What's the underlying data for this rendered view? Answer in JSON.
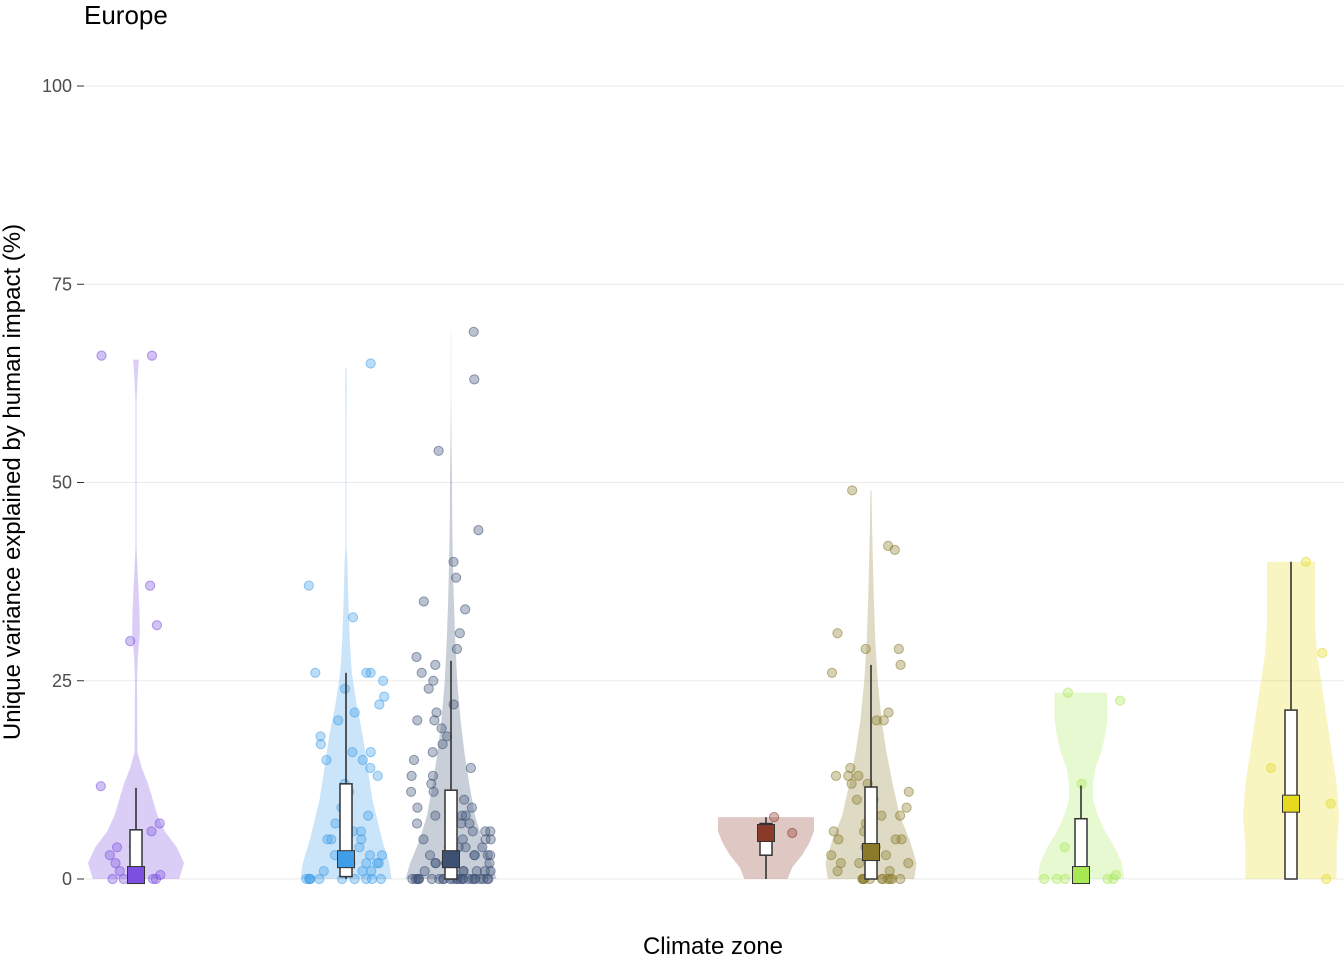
{
  "chart_data": {
    "type": "violin-box-jitter",
    "title": "Europe",
    "xlabel": "Climate zone",
    "ylabel": "Unique variance explained by human impact (%)",
    "ylim": [
      0,
      100
    ],
    "yticks": [
      0,
      25,
      50,
      75,
      100
    ],
    "grid": "horizontal major gridlines",
    "legend": "none",
    "groups": [
      {
        "color": "#7b4fe0",
        "box": {
          "lower": 0,
          "q1": 0,
          "median": 0.5,
          "q3": 6.2,
          "upper": 11.5
        },
        "violin": [
          [
            0,
            0.9
          ],
          [
            2,
            1.0
          ],
          [
            4,
            0.85
          ],
          [
            6,
            0.6
          ],
          [
            8,
            0.45
          ],
          [
            10,
            0.35
          ],
          [
            12,
            0.25
          ],
          [
            14,
            0.12
          ],
          [
            16,
            0.03
          ],
          [
            25,
            0.02
          ],
          [
            28,
            0.04
          ],
          [
            31,
            0.08
          ],
          [
            34,
            0.07
          ],
          [
            38,
            0.04
          ],
          [
            42,
            0.01
          ],
          [
            60,
            0.01
          ],
          [
            63,
            0.03
          ],
          [
            65.5,
            0.06
          ]
        ],
        "points": [
          0,
          0,
          0,
          0,
          0.5,
          1,
          2,
          3,
          4,
          4,
          6,
          7,
          11.7,
          30,
          32,
          37,
          66,
          66
        ]
      },
      {
        "color": "#3f9ee8",
        "box": {
          "lower": 0,
          "q1": 0.3,
          "median": 2.5,
          "q3": 12,
          "upper": 26
        },
        "violin": [
          [
            0,
            0.95
          ],
          [
            2,
            0.9
          ],
          [
            5,
            0.75
          ],
          [
            10,
            0.55
          ],
          [
            14,
            0.45
          ],
          [
            18,
            0.35
          ],
          [
            22,
            0.22
          ],
          [
            26,
            0.12
          ],
          [
            30,
            0.08
          ],
          [
            35,
            0.05
          ],
          [
            40,
            0.03
          ],
          [
            42,
            0.01
          ],
          [
            58,
            0.01
          ],
          [
            62,
            0.015
          ],
          [
            64.5,
            0.01
          ]
        ],
        "points": [
          0,
          0,
          0,
          0,
          0,
          0,
          0,
          0,
          0,
          0,
          1,
          1,
          1,
          2,
          2,
          2,
          2,
          2,
          3,
          3,
          3,
          4,
          4,
          5,
          5,
          5,
          6,
          6,
          7,
          8,
          9,
          10,
          11,
          12,
          13,
          14,
          15,
          15,
          16,
          16,
          17,
          18,
          20,
          21,
          22,
          23,
          24,
          25,
          26,
          26,
          26,
          33,
          37,
          65
        ]
      },
      {
        "color": "#3d5175",
        "box": {
          "lower": 0,
          "q1": 0,
          "median": 2.5,
          "q3": 11.2,
          "upper": 27.5
        },
        "violin": [
          [
            0,
            0.95
          ],
          [
            2,
            0.85
          ],
          [
            5,
            0.65
          ],
          [
            8,
            0.5
          ],
          [
            12,
            0.38
          ],
          [
            16,
            0.28
          ],
          [
            20,
            0.2
          ],
          [
            25,
            0.13
          ],
          [
            30,
            0.09
          ],
          [
            35,
            0.06
          ],
          [
            40,
            0.04
          ],
          [
            45,
            0.025
          ],
          [
            50,
            0.02
          ],
          [
            55,
            0.01
          ],
          [
            60,
            0.005
          ],
          [
            64,
            0.004
          ],
          [
            69,
            0.002
          ]
        ],
        "points": [
          0,
          0,
          0,
          0,
          0,
          0,
          0,
          0,
          0,
          0,
          0,
          0,
          0,
          0,
          0,
          0,
          0,
          0,
          0,
          0,
          0,
          0,
          0,
          0,
          1,
          1,
          1,
          1,
          1,
          1,
          2,
          2,
          2,
          2,
          2,
          2,
          3,
          3,
          3,
          3,
          3,
          4,
          4,
          4,
          4,
          4,
          5,
          5,
          5,
          5,
          6,
          6,
          6,
          7,
          7,
          7,
          8,
          8,
          8,
          9,
          9,
          10,
          10,
          11,
          11,
          12,
          13,
          13,
          14,
          15,
          16,
          17,
          18,
          19,
          20,
          20,
          21,
          22,
          24,
          25,
          26,
          27,
          28,
          29,
          31,
          34,
          35,
          38,
          40,
          44,
          54,
          63,
          69
        ]
      },
      {
        "color": "#8b3a2a",
        "box": {
          "lower": 0,
          "q1": 3,
          "median": 5.8,
          "q3": 7,
          "upper": 7.8
        },
        "violin": [
          [
            0,
            0.45
          ],
          [
            1.5,
            0.55
          ],
          [
            3,
            0.75
          ],
          [
            4.5,
            0.9
          ],
          [
            6,
            1.0
          ],
          [
            7.8,
            1.0
          ]
        ],
        "points": [
          5.8,
          7.8
        ]
      },
      {
        "color": "#8a7a2a",
        "box": {
          "lower": 0,
          "q1": 0,
          "median": 3.4,
          "q3": 11.6,
          "upper": 27
        },
        "violin": [
          [
            0,
            0.9
          ],
          [
            2,
            0.95
          ],
          [
            5,
            0.8
          ],
          [
            8,
            0.6
          ],
          [
            12,
            0.45
          ],
          [
            16,
            0.32
          ],
          [
            20,
            0.22
          ],
          [
            25,
            0.14
          ],
          [
            30,
            0.09
          ],
          [
            35,
            0.06
          ],
          [
            40,
            0.04
          ],
          [
            45,
            0.02
          ],
          [
            49,
            0.01
          ]
        ],
        "points": [
          0,
          0,
          0,
          0,
          0,
          0,
          0,
          0,
          0,
          0,
          0,
          1,
          1,
          1,
          2,
          2,
          2,
          2,
          3,
          3,
          3,
          3,
          4,
          4,
          4,
          5,
          5,
          5,
          6,
          6,
          7,
          8,
          8,
          9,
          10,
          10,
          11,
          12,
          12,
          13,
          13,
          13,
          14,
          20,
          20,
          21,
          26,
          27,
          29,
          29,
          31,
          41.5,
          42,
          49
        ]
      },
      {
        "color": "#a8e855",
        "box": {
          "lower": 0,
          "q1": 0,
          "median": 0.5,
          "q3": 7.6,
          "upper": 11.8
        },
        "violin": [
          [
            0,
            0.9
          ],
          [
            2,
            0.85
          ],
          [
            4,
            0.7
          ],
          [
            6,
            0.5
          ],
          [
            8,
            0.35
          ],
          [
            10,
            0.25
          ],
          [
            12,
            0.25
          ],
          [
            14,
            0.3
          ],
          [
            16,
            0.42
          ],
          [
            18,
            0.5
          ],
          [
            20,
            0.55
          ],
          [
            23.5,
            0.55
          ]
        ],
        "points": [
          0,
          0,
          0,
          0,
          0,
          0.5,
          4,
          12,
          22.5,
          23.5
        ]
      },
      {
        "color": "#e6da1e",
        "box": {
          "lower": 0,
          "q1": 0,
          "median": 9.5,
          "q3": 21.3,
          "upper": 40
        },
        "violin": [
          [
            0,
            0.95
          ],
          [
            4,
            0.95
          ],
          [
            8,
            1.0
          ],
          [
            12,
            0.95
          ],
          [
            16,
            0.85
          ],
          [
            20,
            0.75
          ],
          [
            24,
            0.65
          ],
          [
            28,
            0.55
          ],
          [
            32,
            0.5
          ],
          [
            36,
            0.5
          ],
          [
            40,
            0.5
          ]
        ],
        "points": [
          0,
          9.5,
          14,
          28.5,
          40
        ]
      }
    ]
  }
}
